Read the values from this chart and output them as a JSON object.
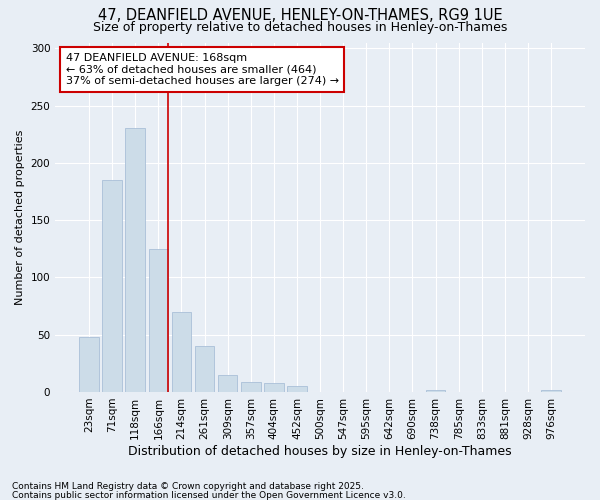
{
  "title": "47, DEANFIELD AVENUE, HENLEY-ON-THAMES, RG9 1UE",
  "subtitle": "Size of property relative to detached houses in Henley-on-Thames",
  "xlabel": "Distribution of detached houses by size in Henley-on-Thames",
  "ylabel": "Number of detached properties",
  "categories": [
    "23sqm",
    "71sqm",
    "118sqm",
    "166sqm",
    "214sqm",
    "261sqm",
    "309sqm",
    "357sqm",
    "404sqm",
    "452sqm",
    "500sqm",
    "547sqm",
    "595sqm",
    "642sqm",
    "690sqm",
    "738sqm",
    "785sqm",
    "833sqm",
    "881sqm",
    "928sqm",
    "976sqm"
  ],
  "values": [
    48,
    185,
    230,
    125,
    70,
    40,
    15,
    9,
    8,
    5,
    0,
    0,
    0,
    0,
    0,
    2,
    0,
    0,
    0,
    0,
    2
  ],
  "bar_color": "#ccdce8",
  "bar_edge_color": "#aac0d8",
  "annotation_text_line1": "47 DEANFIELD AVENUE: 168sqm",
  "annotation_text_line2": "← 63% of detached houses are smaller (464)",
  "annotation_text_line3": "37% of semi-detached houses are larger (274) →",
  "annotation_box_color": "#ffffff",
  "annotation_box_edge": "#cc0000",
  "vline_color": "#cc0000",
  "footer1": "Contains HM Land Registry data © Crown copyright and database right 2025.",
  "footer2": "Contains public sector information licensed under the Open Government Licence v3.0.",
  "bg_color": "#e8eef5",
  "plot_bg_color": "#e8eef5",
  "ylim": [
    0,
    305
  ],
  "title_fontsize": 10.5,
  "subtitle_fontsize": 9,
  "ylabel_fontsize": 8,
  "xlabel_fontsize": 9,
  "tick_fontsize": 7.5,
  "footer_fontsize": 6.5,
  "ann_fontsize": 8
}
